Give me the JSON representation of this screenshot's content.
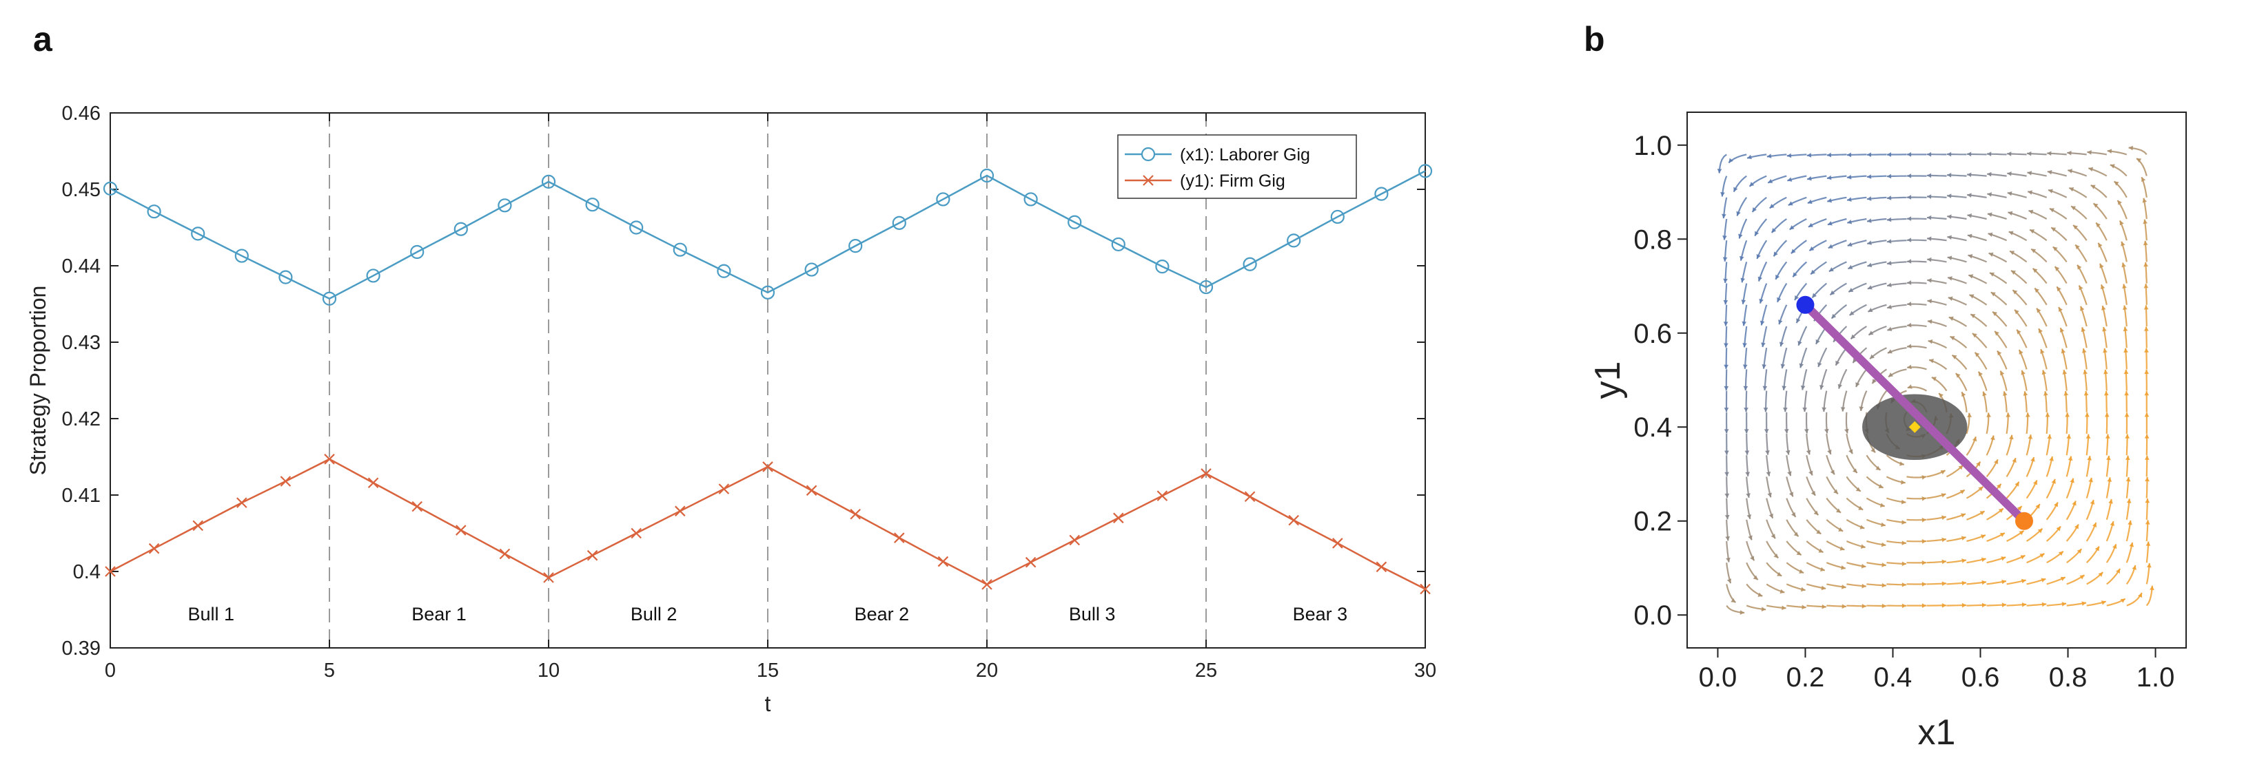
{
  "panel_labels": {
    "a": "a",
    "b": "b"
  },
  "colors": {
    "laborer": "#4a9cc4",
    "firm": "#d9633d",
    "stream_blue": "#5b7bb0",
    "stream_orange": "#f0a030",
    "trajectory": "#a75ab0",
    "start_point": "#1f2ee6",
    "end_point": "#f5821f",
    "ellipse": "#555555",
    "center_point": "#ffd21a"
  },
  "chart_data": [
    {
      "id": "a",
      "type": "line",
      "title": "",
      "xlabel": "t",
      "ylabel": "Strategy Proportion",
      "xlim": [
        0,
        30
      ],
      "ylim": [
        0.39,
        0.46
      ],
      "xticks": [
        "0",
        "5",
        "10",
        "15",
        "20",
        "25",
        "30"
      ],
      "yticks": [
        "0.39",
        "0.4",
        "0.41",
        "0.42",
        "0.43",
        "0.44",
        "0.45",
        "0.46"
      ],
      "x": [
        0,
        1,
        2,
        3,
        4,
        5,
        6,
        7,
        8,
        9,
        10,
        11,
        12,
        13,
        14,
        15,
        16,
        17,
        18,
        19,
        20,
        21,
        22,
        23,
        24,
        25,
        26,
        27,
        28,
        29,
        30
      ],
      "series": [
        {
          "name": "(x1): Laborer Gig",
          "marker": "circle",
          "values": [
            0.4501,
            0.4471,
            0.4442,
            0.4413,
            0.4385,
            0.4357,
            0.4387,
            0.4418,
            0.4448,
            0.4479,
            0.451,
            0.448,
            0.445,
            0.4421,
            0.4393,
            0.4365,
            0.4395,
            0.4426,
            0.4456,
            0.4487,
            0.4518,
            0.4487,
            0.4457,
            0.4428,
            0.4399,
            0.4372,
            0.4402,
            0.4433,
            0.4464,
            0.4494,
            0.4524
          ]
        },
        {
          "name": "(y1): Firm Gig",
          "marker": "x",
          "values": [
            0.4,
            0.403,
            0.406,
            0.409,
            0.4118,
            0.4147,
            0.4116,
            0.4085,
            0.4054,
            0.4023,
            0.3992,
            0.4021,
            0.405,
            0.4079,
            0.4108,
            0.4137,
            0.4106,
            0.4075,
            0.4044,
            0.4013,
            0.3983,
            0.4012,
            0.4041,
            0.407,
            0.4099,
            0.4128,
            0.4098,
            0.4067,
            0.4037,
            0.4006,
            0.3977
          ]
        }
      ],
      "regions": [
        {
          "label": "Bull 1",
          "x": 2.3
        },
        {
          "label": "Bear 1",
          "x": 7.5
        },
        {
          "label": "Bull 2",
          "x": 12.4
        },
        {
          "label": "Bear 2",
          "x": 17.6
        },
        {
          "label": "Bull 3",
          "x": 22.4
        },
        {
          "label": "Bear 3",
          "x": 27.6
        }
      ],
      "region_label_y": 0.3945,
      "dividers": [
        5,
        10,
        15,
        20,
        25
      ],
      "legend": "top-right"
    },
    {
      "id": "b",
      "type": "stream",
      "title": "",
      "xlabel": "x1",
      "ylabel": "y1",
      "xlim": [
        -0.07,
        1.07
      ],
      "ylim": [
        -0.07,
        1.07
      ],
      "frame_x": [
        -0.07,
        1.07
      ],
      "frame_y": [
        -0.07,
        1.07
      ],
      "xticks": [
        "0.0",
        "0.2",
        "0.4",
        "0.6",
        "0.8",
        "1.0"
      ],
      "yticks": [
        "0.0",
        "0.2",
        "0.4",
        "0.6",
        "0.8",
        "1.0"
      ],
      "field": {
        "a": 0.45,
        "b": 0.42,
        "scale": 8
      },
      "trajectory": {
        "start": [
          0.2,
          0.66
        ],
        "end": [
          0.7,
          0.2
        ]
      },
      "ellipse": {
        "center": [
          0.45,
          0.4
        ],
        "rx": 0.12,
        "ry": 0.07,
        "angle_deg": 0
      },
      "center_point": [
        0.45,
        0.4
      ]
    }
  ]
}
